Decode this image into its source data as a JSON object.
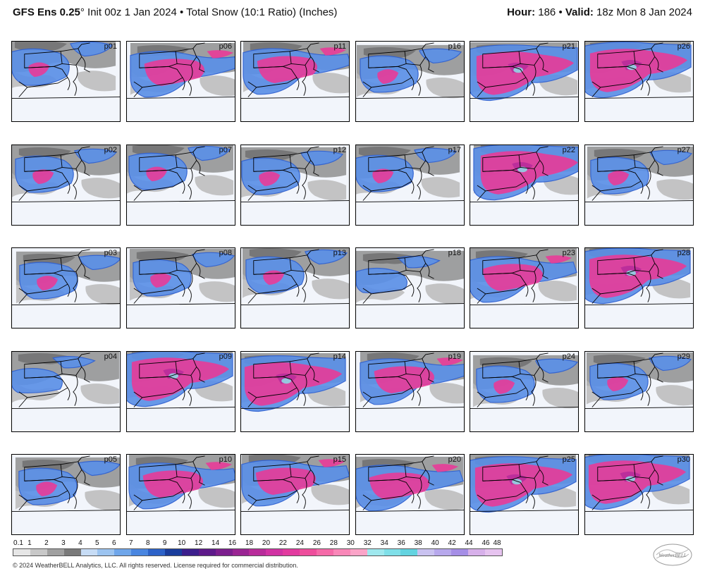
{
  "header": {
    "model": "GFS Ens 0.25",
    "degree": "°",
    "init": " Init 00z 1 Jan 2024",
    "sep": " • ",
    "product": "Total Snow (10:1 Ratio) (Inches)",
    "hour_label": "Hour:",
    "hour_value": " 186",
    "valid_label": "Valid:",
    "valid_value": " 18z Mon 8 Jan 2024"
  },
  "panels": [
    [
      "p01",
      "p06",
      "p11",
      "p16",
      "p21",
      "p26"
    ],
    [
      "p02",
      "p07",
      "p12",
      "p17",
      "p22",
      "p27"
    ],
    [
      "p03",
      "p08",
      "p13",
      "p18",
      "p23",
      "p28"
    ],
    [
      "p04",
      "p09",
      "p14",
      "p19",
      "p24",
      "p29"
    ],
    [
      "p05",
      "p10",
      "p15",
      "p20",
      "p25",
      "p30"
    ]
  ],
  "panel_intensity": [
    [
      1,
      2,
      2,
      1,
      3,
      3
    ],
    [
      1,
      1,
      1,
      1,
      3,
      1
    ],
    [
      1,
      1,
      1,
      0,
      2,
      3
    ],
    [
      0,
      3,
      3,
      2,
      1,
      1
    ],
    [
      1,
      2,
      2,
      2,
      3,
      3
    ]
  ],
  "legend": {
    "ticks": [
      "0.1",
      "1",
      "2",
      "3",
      "4",
      "5",
      "6",
      "7",
      "8",
      "9",
      "10",
      "12",
      "14",
      "16",
      "18",
      "20",
      "22",
      "24",
      "26",
      "28",
      "30",
      "32",
      "34",
      "36",
      "38",
      "40",
      "42",
      "44",
      "46",
      "48"
    ],
    "colors": [
      "#e6e6e6",
      "#c8c8c8",
      "#a0a0a0",
      "#7a7a7a",
      "#c7dcf5",
      "#9cc4f0",
      "#6fa6ea",
      "#4a86e0",
      "#2d62c8",
      "#1a3d9c",
      "#3c1f8c",
      "#5e1a8a",
      "#7c1f8e",
      "#9a2593",
      "#b82c9a",
      "#d133a3",
      "#e23b9f",
      "#ee4e9c",
      "#f56aa8",
      "#f987b8",
      "#fba4c8",
      "#9fe8ee",
      "#7fdfe8",
      "#63d3e0",
      "#c9c2f0",
      "#b7a8ec",
      "#a58ee6",
      "#d7b0ea",
      "#e6c3ef"
    ]
  },
  "copyright": "© 2024 WeatherBELL Analytics, LLC. All rights reserved. License required for commercial distribution.",
  "logo_text": "WeatherBELL"
}
